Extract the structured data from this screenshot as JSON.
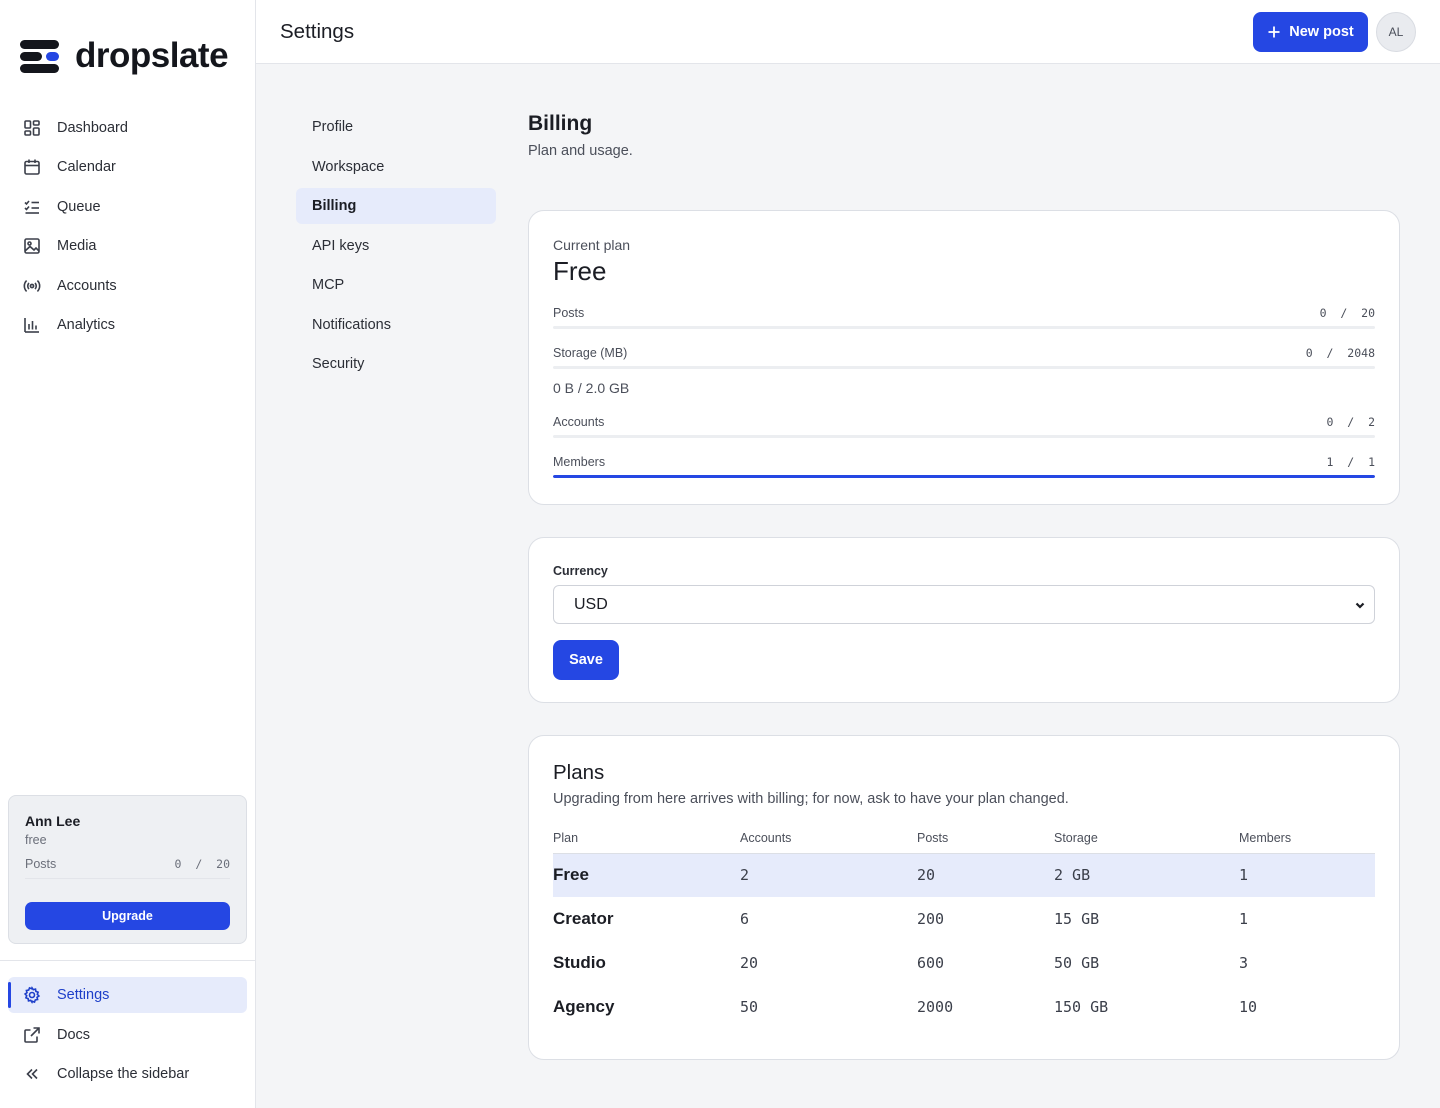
{
  "brand": {
    "name": "dropslate"
  },
  "nav": {
    "items": [
      {
        "label": "Dashboard",
        "icon": "dashboard-icon"
      },
      {
        "label": "Calendar",
        "icon": "calendar-icon"
      },
      {
        "label": "Queue",
        "icon": "queue-icon"
      },
      {
        "label": "Media",
        "icon": "image-icon"
      },
      {
        "label": "Accounts",
        "icon": "broadcast-icon"
      },
      {
        "label": "Analytics",
        "icon": "bar-chart-icon"
      }
    ]
  },
  "usage_card": {
    "name": "Ann Lee",
    "plan": "free",
    "metric_label": "Posts",
    "metric_used": "0",
    "metric_sep": "/",
    "metric_limit": "20",
    "upgrade_label": "Upgrade"
  },
  "bottom_nav": {
    "settings": "Settings",
    "docs": "Docs",
    "collapse": "Collapse the sidebar"
  },
  "header": {
    "title": "Settings",
    "new_post_label": "New post",
    "avatar_initials": "AL"
  },
  "settings_nav": {
    "items": [
      "Profile",
      "Workspace",
      "Billing",
      "API keys",
      "MCP",
      "Notifications",
      "Security"
    ],
    "active": "Billing"
  },
  "billing": {
    "title": "Billing",
    "subtitle": "Plan and usage."
  },
  "current_plan": {
    "label": "Current plan",
    "name": "Free",
    "meters": [
      {
        "label": "Posts",
        "used": "0",
        "limit": "20",
        "fraction": 0
      },
      {
        "label": "Storage (MB)",
        "used": "0",
        "limit": "2048",
        "fraction": 0
      },
      {
        "label": "Accounts",
        "used": "0",
        "limit": "2",
        "fraction": 0
      },
      {
        "label": "Members",
        "used": "1",
        "limit": "1",
        "fraction": 1
      }
    ],
    "storage_note": "0 B / 2.0 GB"
  },
  "currency": {
    "label": "Currency",
    "value": "USD",
    "save_label": "Save"
  },
  "plans": {
    "title": "Plans",
    "subtitle": "Upgrading from here arrives with billing; for now, ask to have your plan changed.",
    "columns": [
      "Plan",
      "Accounts",
      "Posts",
      "Storage",
      "Members"
    ],
    "rows": [
      {
        "plan": "Free",
        "accounts": "2",
        "posts": "20",
        "storage": "2 GB",
        "members": "1",
        "current": true
      },
      {
        "plan": "Creator",
        "accounts": "6",
        "posts": "200",
        "storage": "15 GB",
        "members": "1"
      },
      {
        "plan": "Studio",
        "accounts": "20",
        "posts": "600",
        "storage": "50 GB",
        "members": "3"
      },
      {
        "plan": "Agency",
        "accounts": "50",
        "posts": "2000",
        "storage": "150 GB",
        "members": "10"
      }
    ]
  },
  "colors": {
    "accent": "#2547e3",
    "active_bg": "#e6ebfb",
    "page_bg": "#f4f5f7"
  }
}
